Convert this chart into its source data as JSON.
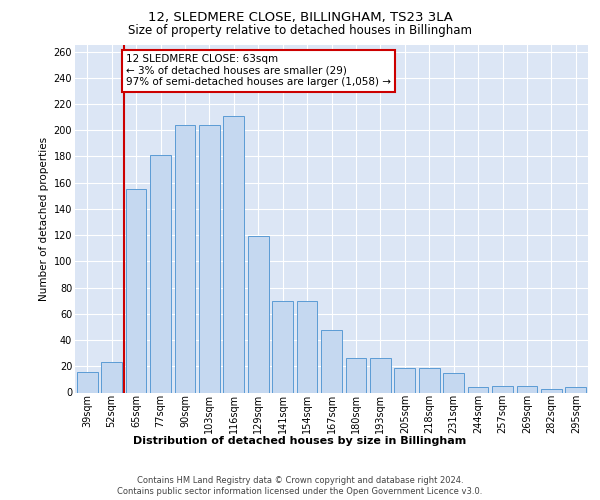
{
  "title1": "12, SLEDMERE CLOSE, BILLINGHAM, TS23 3LA",
  "title2": "Size of property relative to detached houses in Billingham",
  "xlabel": "Distribution of detached houses by size in Billingham",
  "ylabel": "Number of detached properties",
  "categories": [
    "39sqm",
    "52sqm",
    "65sqm",
    "77sqm",
    "90sqm",
    "103sqm",
    "116sqm",
    "129sqm",
    "141sqm",
    "154sqm",
    "167sqm",
    "180sqm",
    "193sqm",
    "205sqm",
    "218sqm",
    "231sqm",
    "244sqm",
    "257sqm",
    "269sqm",
    "282sqm",
    "295sqm"
  ],
  "values": [
    16,
    23,
    155,
    181,
    204,
    204,
    211,
    119,
    70,
    70,
    48,
    26,
    26,
    19,
    19,
    15,
    4,
    5,
    5,
    3,
    4
  ],
  "bar_color": "#c5d8f0",
  "bar_edge_color": "#5b9bd5",
  "vline_x": 1.5,
  "vline_color": "#cc0000",
  "annotation_text": "12 SLEDMERE CLOSE: 63sqm\n← 3% of detached houses are smaller (29)\n97% of semi-detached houses are larger (1,058) →",
  "annotation_box_edge_color": "#cc0000",
  "ylim_max": 265,
  "yticks": [
    0,
    20,
    40,
    60,
    80,
    100,
    120,
    140,
    160,
    180,
    200,
    220,
    240,
    260
  ],
  "footer1": "Contains HM Land Registry data © Crown copyright and database right 2024.",
  "footer2": "Contains public sector information licensed under the Open Government Licence v3.0.",
  "grid_color": "#ffffff",
  "bg_color": "#dce6f5",
  "title1_fontsize": 9.5,
  "title2_fontsize": 8.5,
  "xlabel_fontsize": 8.0,
  "ylabel_fontsize": 7.5,
  "tick_fontsize": 7.0,
  "annot_fontsize": 7.5,
  "footer_fontsize": 6.0
}
